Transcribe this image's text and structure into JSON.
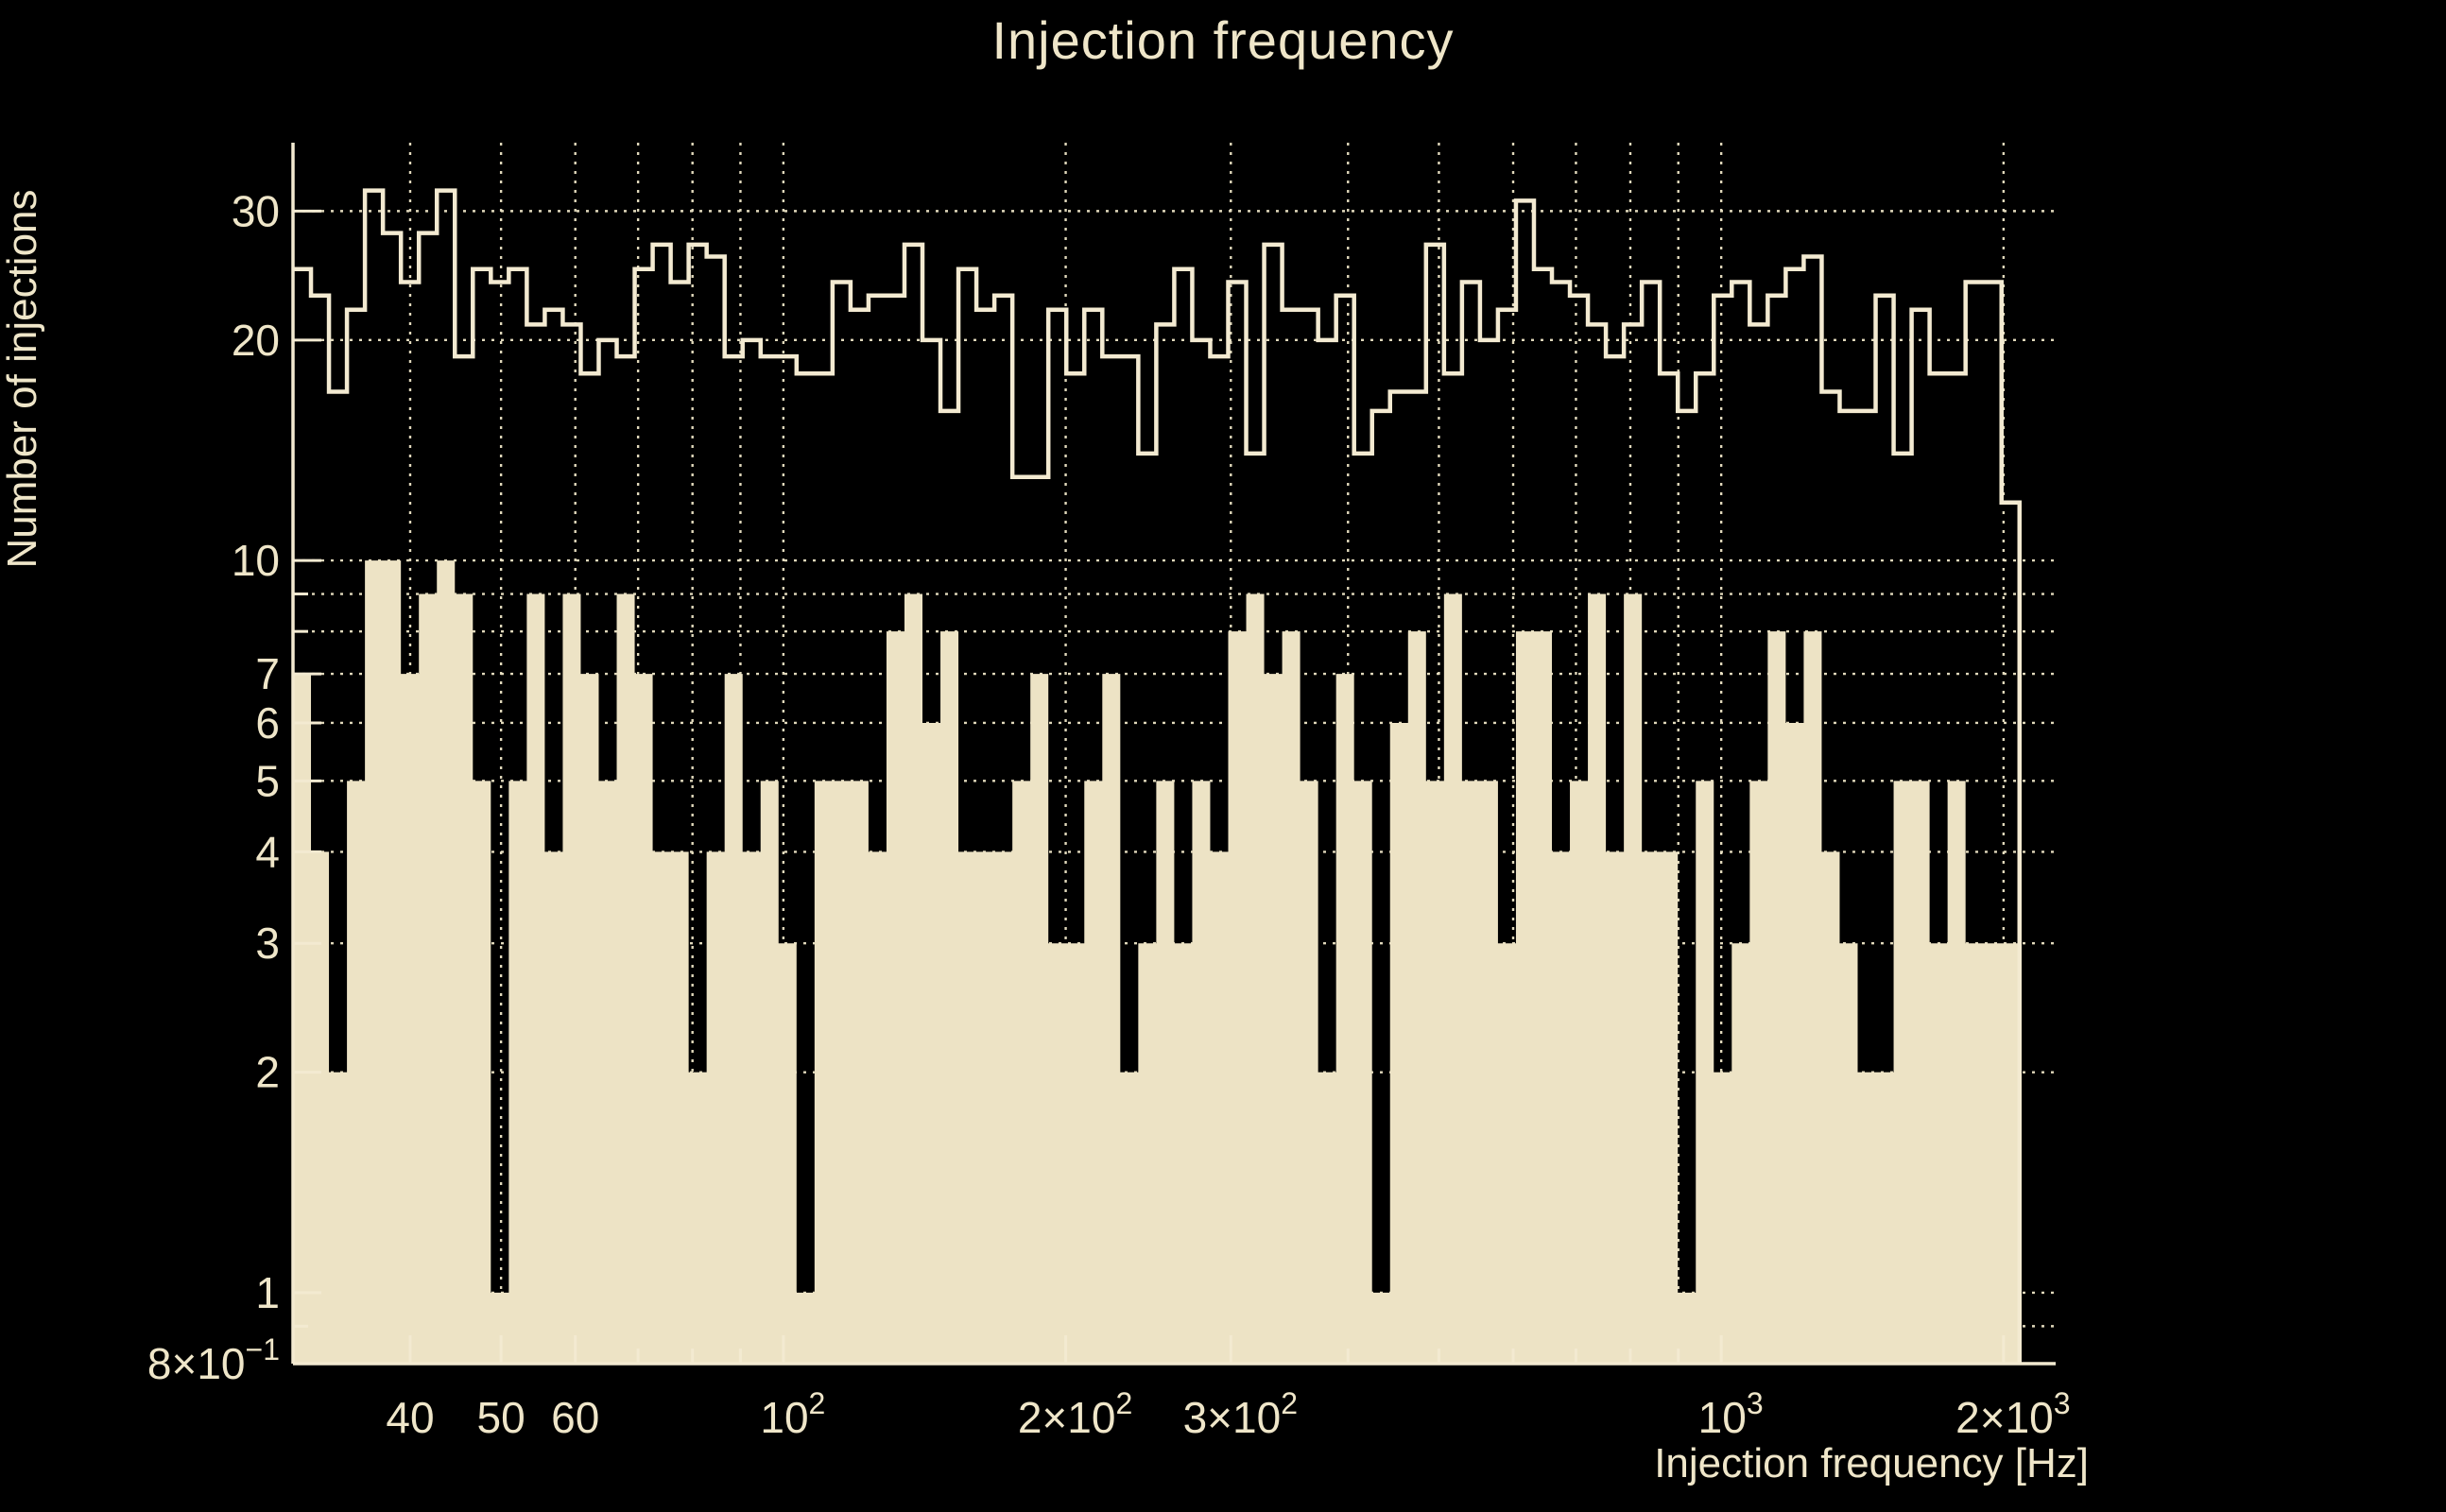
{
  "chart": {
    "title": "Injection frequency",
    "background_color": "#000000",
    "text_color": "#EFE6C9",
    "fill_color": "#EDE3C5",
    "line_color": "#F3EAD1",
    "grid_color": "#EDE4C6",
    "x_axis": {
      "title": "Injection frequency [Hz]",
      "scale": "log",
      "min": 30,
      "max": 2273,
      "gridlines": [
        40,
        50,
        60,
        70,
        80,
        90,
        100,
        200,
        300,
        400,
        500,
        600,
        700,
        800,
        900,
        1000,
        2000
      ],
      "tick_labels": [
        {
          "v": 40,
          "t": "40",
          "s": ""
        },
        {
          "v": 50,
          "t": "50",
          "s": ""
        },
        {
          "v": 60,
          "t": "60",
          "s": ""
        },
        {
          "v": 100,
          "t": "10",
          "s": "2"
        },
        {
          "v": 200,
          "t": "2×10",
          "s": "2"
        },
        {
          "v": 300,
          "t": "3×10",
          "s": "2"
        },
        {
          "v": 1000,
          "t": "10",
          "s": "3"
        },
        {
          "v": 2000,
          "t": "2×10",
          "s": "3"
        }
      ]
    },
    "y_axis": {
      "title": "Number of injections",
      "scale": "log",
      "min": 0.8,
      "max": 37.2,
      "gridlines": [
        0.9,
        1,
        2,
        3,
        4,
        5,
        6,
        7,
        8,
        9,
        10,
        20,
        30
      ],
      "tick_labels": [
        {
          "v": 30,
          "t": "30",
          "s": ""
        },
        {
          "v": 20,
          "t": "20",
          "s": ""
        },
        {
          "v": 10,
          "t": "10",
          "s": ""
        },
        {
          "v": 7,
          "t": "7",
          "s": ""
        },
        {
          "v": 6,
          "t": "6",
          "s": ""
        },
        {
          "v": 5,
          "t": "5",
          "s": ""
        },
        {
          "v": 4,
          "t": "4",
          "s": ""
        },
        {
          "v": 3,
          "t": "3",
          "s": ""
        },
        {
          "v": 2,
          "t": "2",
          "s": ""
        },
        {
          "v": 1,
          "t": "1",
          "s": ""
        },
        {
          "v": 0.8,
          "t": "8×10",
          "s": "−1"
        }
      ]
    }
  },
  "chart_data": {
    "type": "histogram",
    "x_scale": "log",
    "y_scale": "log",
    "bin_start_hz": 30,
    "bin_end_hz": 2080,
    "bin_count": 96,
    "series": [
      {
        "name": "outline-histogram",
        "style": "step-outline",
        "values": [
          25,
          23,
          17,
          22,
          32,
          28,
          24,
          28,
          32,
          19,
          25,
          24,
          25,
          21,
          22,
          21,
          18,
          20,
          19,
          25,
          27,
          24,
          27,
          26,
          19,
          20,
          19,
          19,
          18,
          18,
          24,
          22,
          23,
          23,
          27,
          20,
          16,
          25,
          22,
          23,
          13,
          13,
          22,
          18,
          22,
          19,
          19,
          14,
          21,
          25,
          20,
          19,
          24,
          14,
          27,
          22,
          22,
          20,
          23,
          14,
          16,
          17,
          17,
          27,
          18,
          24,
          20,
          22,
          31,
          25,
          24,
          23,
          21,
          19,
          21,
          24,
          18,
          16,
          18,
          23,
          24,
          21,
          23,
          25,
          26,
          17,
          16,
          16,
          23,
          14,
          22,
          18,
          18,
          24,
          24,
          12
        ]
      },
      {
        "name": "filled-histogram",
        "style": "filled",
        "values": [
          7,
          4,
          2,
          5,
          10,
          10,
          7,
          9,
          10,
          9,
          5,
          1,
          5,
          9,
          4,
          9,
          7,
          5,
          9,
          7,
          4,
          4,
          2,
          4,
          7,
          4,
          5,
          3,
          1,
          5,
          5,
          5,
          4,
          8,
          9,
          6,
          8,
          4,
          4,
          4,
          5,
          7,
          3,
          3,
          5,
          7,
          2,
          3,
          5,
          3,
          5,
          4,
          8,
          9,
          7,
          8,
          5,
          2,
          7,
          5,
          1,
          6,
          8,
          5,
          9,
          5,
          5,
          3,
          8,
          8,
          4,
          5,
          9,
          4,
          9,
          4,
          4,
          1,
          5,
          2,
          3,
          5,
          8,
          6,
          8,
          4,
          3,
          2,
          2,
          5,
          5,
          3,
          5,
          3,
          3,
          3
        ]
      }
    ]
  }
}
